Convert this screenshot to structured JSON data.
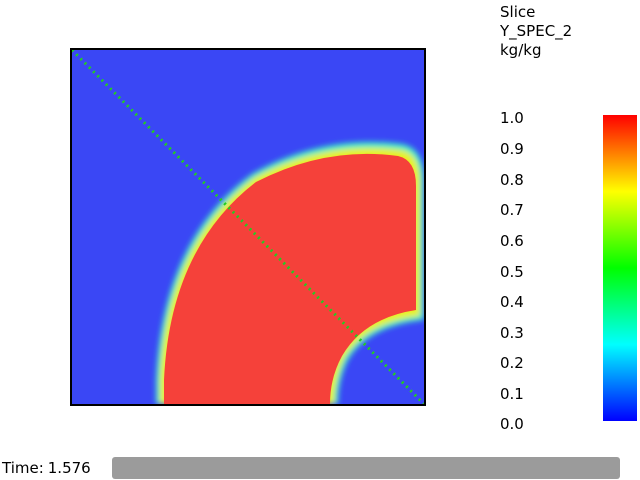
{
  "colorbar": {
    "title_lines": [
      "Slice",
      "Y_SPEC_2",
      "kg/kg"
    ],
    "ticks": [
      "1.0",
      "0.9",
      "0.8",
      "0.7",
      "0.6",
      "0.5",
      "0.4",
      "0.3",
      "0.2",
      "0.1",
      "0.0"
    ],
    "gradient_stops": [
      "#0000ff",
      "#00ffff",
      "#00ff00",
      "#ffff00",
      "#ff0000"
    ]
  },
  "slice_plot": {
    "background_color": "#3a47f5",
    "high_color": "#f5413a",
    "probe_line_color": "#22cc22"
  },
  "timebar": {
    "label": "Time:",
    "value": "1.576"
  }
}
